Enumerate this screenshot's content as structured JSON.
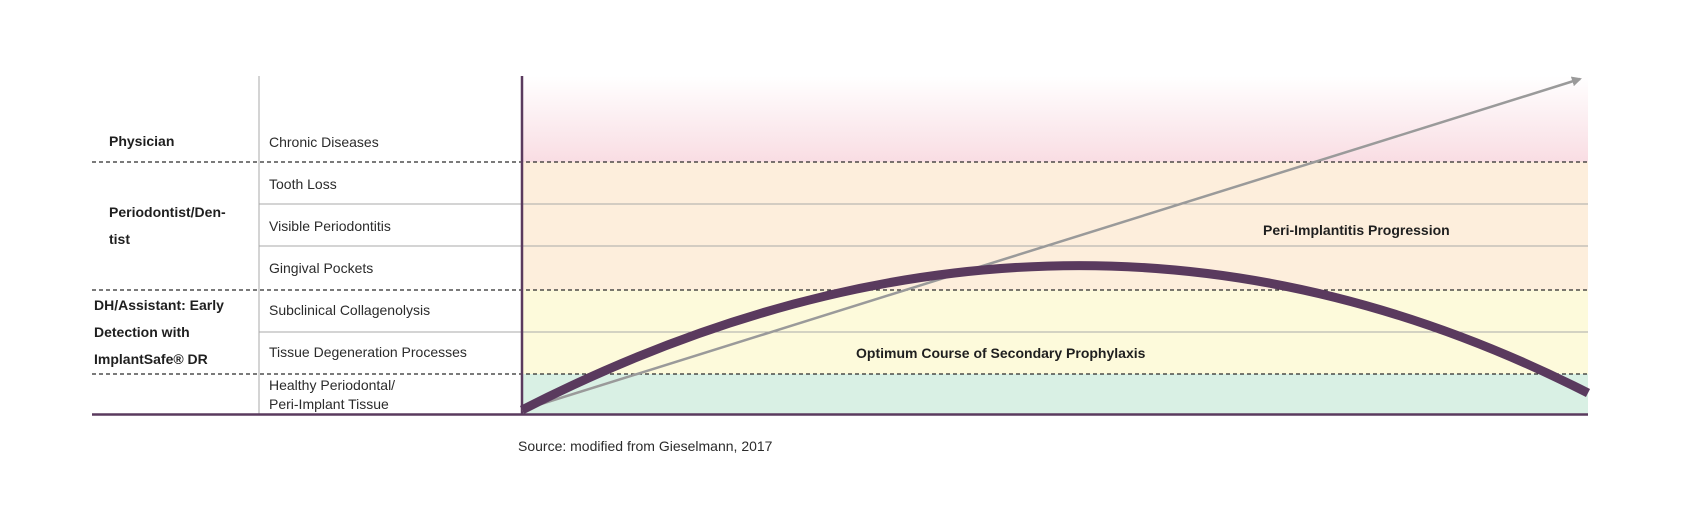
{
  "roles": [
    {
      "lines": [
        "Physician"
      ]
    },
    {
      "lines": [
        "Periodontist/Den-",
        "tist"
      ]
    },
    {
      "lines": [
        "DH/Assistant: Early",
        "Detection with",
        "ImplantSafe® DR"
      ]
    }
  ],
  "stages": [
    {
      "lines": [
        "Chronic Diseases"
      ]
    },
    {
      "lines": [
        "Tooth Loss"
      ]
    },
    {
      "lines": [
        "Visible Periodontitis"
      ]
    },
    {
      "lines": [
        "Gingival Pockets"
      ]
    },
    {
      "lines": [
        "Subclinical Collagenolysis"
      ]
    },
    {
      "lines": [
        "Tissue Degeneration Processes"
      ]
    },
    {
      "lines": [
        "Healthy Periodontal/",
        "Peri-Implant Tissue"
      ]
    }
  ],
  "annotations": {
    "progression": "Peri-Implantitis Progression",
    "prophylaxis": "Optimum Course of Secondary Prophylaxis"
  },
  "source": "Source: modified from Gieselmann, 2017",
  "colors": {
    "axis": "#5a3a5e",
    "curve": "#5a3a5e",
    "arrow": "#9a9a9a",
    "zone_red": "#f9dde3",
    "zone_orange": "#fdeedc",
    "zone_yellow": "#fdfadb",
    "zone_green": "#d9f0e4"
  }
}
